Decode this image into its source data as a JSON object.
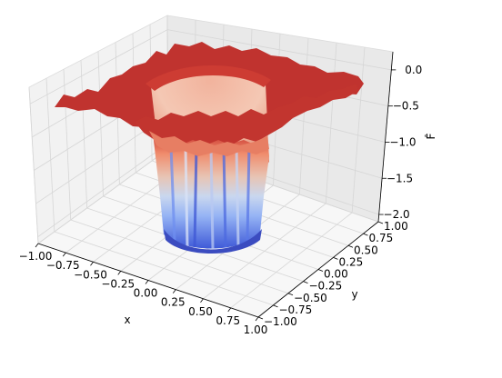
{
  "chart_data": {
    "type": "surface3d",
    "title": "",
    "xlabel": "x",
    "ylabel": "y",
    "zlabel": "F̂",
    "x_ticks": [
      "−1.00",
      "−0.75",
      "−0.50",
      "−0.25",
      "0.00",
      "0.25",
      "0.50",
      "0.75",
      "1.00"
    ],
    "y_ticks": [
      "−1.00",
      "−0.75",
      "−0.50",
      "−0.25",
      "0.00",
      "0.25",
      "0.50",
      "0.75",
      "1.00"
    ],
    "z_ticks": [
      "0.0",
      "−0.5",
      "−1.0",
      "−1.5",
      "−2.0"
    ],
    "xlim": [
      -1.0,
      1.0
    ],
    "ylim": [
      -1.0,
      1.0
    ],
    "zlim": [
      -2.1,
      0.25
    ],
    "colormap": "coolwarm",
    "surface_description_values": {
      "outer_plateau_z": 0.0,
      "well_radius": 0.5,
      "well_bottom_z": -2.0
    },
    "grid": true
  }
}
